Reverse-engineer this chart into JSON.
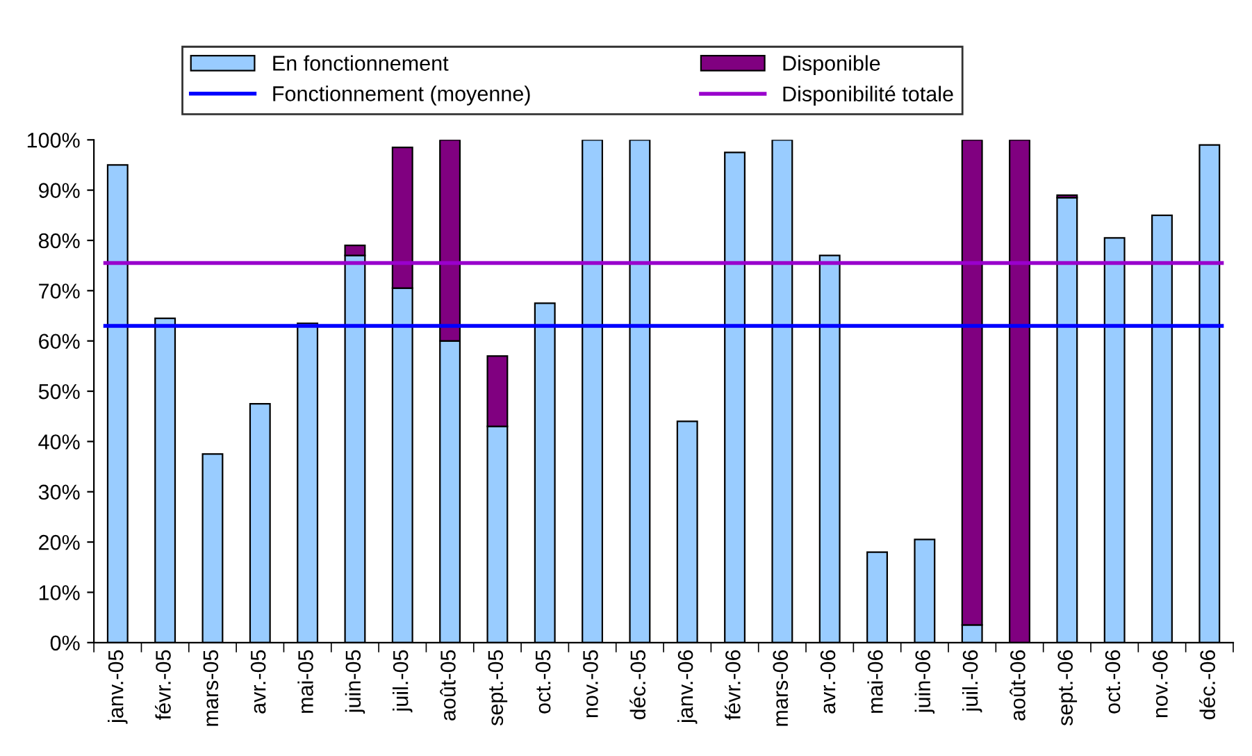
{
  "chart_data": {
    "type": "bar",
    "stacked": true,
    "categories": [
      "janv.-05",
      "févr.-05",
      "mars-05",
      "avr.-05",
      "mai-05",
      "juin-05",
      "juil.-05",
      "août-05",
      "sept.-05",
      "oct.-05",
      "nov.-05",
      "déc.-05",
      "janv.-06",
      "févr.-06",
      "mars-06",
      "avr.-06",
      "mai-06",
      "juin-06",
      "juil.-06",
      "août-06",
      "sept.-06",
      "oct.-06",
      "nov.-06",
      "déc.-06"
    ],
    "series": [
      {
        "name": "En fonctionnement",
        "color": "#99ccff",
        "values": [
          95,
          64.5,
          37.5,
          47.5,
          63.5,
          77,
          70.5,
          60,
          43,
          67.5,
          100,
          100,
          44,
          97.5,
          100,
          77,
          18,
          20.5,
          3.5,
          0,
          88.5,
          80.5,
          85,
          99
        ]
      },
      {
        "name": "Disponible",
        "color": "#800080",
        "values": [
          0,
          0,
          0,
          0,
          0,
          2,
          28,
          40,
          14,
          0,
          0,
          0,
          0,
          0,
          0,
          0,
          0,
          0,
          96.5,
          100,
          0.5,
          0,
          0,
          0
        ]
      }
    ],
    "ref_lines": [
      {
        "axis": "y",
        "value": 63,
        "label": "Fonctionnement (moyenne)",
        "color": "#0000ff",
        "line_style": "solid"
      },
      {
        "axis": "y",
        "value": 75.5,
        "label": "Disponibilité totale",
        "color": "#9900cc",
        "line_style": "solid"
      }
    ],
    "ylim": [
      0,
      100
    ],
    "yticks": [
      {
        "value": 0,
        "label": "0%"
      },
      {
        "value": 10,
        "label": "10%"
      },
      {
        "value": 20,
        "label": "20%"
      },
      {
        "value": 30,
        "label": "30%"
      },
      {
        "value": 40,
        "label": "40%"
      },
      {
        "value": 50,
        "label": "50%"
      },
      {
        "value": 60,
        "label": "60%"
      },
      {
        "value": 70,
        "label": "70%"
      },
      {
        "value": 80,
        "label": "80%"
      },
      {
        "value": 90,
        "label": "90%"
      },
      {
        "value": 100,
        "label": "100%"
      }
    ],
    "grid": false,
    "legend": "top"
  }
}
